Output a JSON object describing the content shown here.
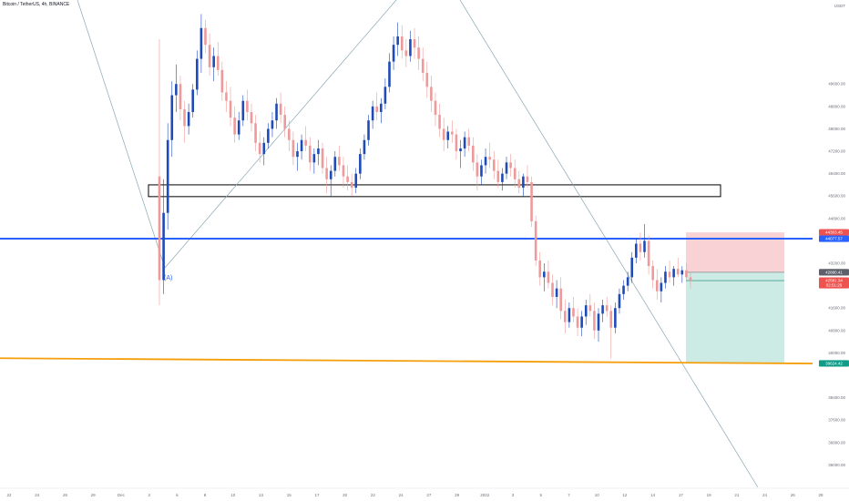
{
  "header": {
    "symbol": "Bitcoin / TetherUS, 4h, BINANCE"
  },
  "currency_label": "USDT",
  "colors": {
    "up": "#1e4bb8",
    "down": "#ef9a9a",
    "trend": "#88a8b4",
    "resistance": "#2962ff",
    "support": "#f59e0b",
    "stop": "#f8c7cc",
    "target": "#bfe6df"
  },
  "chart_data": {
    "type": "candlestick",
    "title": "Bitcoin / TetherUS, 4h, BINANCE",
    "ylim": [
      35200,
      52600
    ],
    "y_ticks": [
      {
        "value": 49600,
        "label": "49600.00"
      },
      {
        "value": 48800,
        "label": "48800.00"
      },
      {
        "value": 48000,
        "label": "48000.00"
      },
      {
        "value": 47200,
        "label": "47200.00"
      },
      {
        "value": 46400,
        "label": "46400.00"
      },
      {
        "value": 45600,
        "label": "45600.00"
      },
      {
        "value": 44800,
        "label": "44800.00"
      },
      {
        "value": 43200,
        "label": "43200.00"
      },
      {
        "value": 41600,
        "label": "41600.00"
      },
      {
        "value": 40800,
        "label": "40800.00"
      },
      {
        "value": 40000,
        "label": "40000.00"
      },
      {
        "value": 38400,
        "label": "38400.00"
      },
      {
        "value": 37600,
        "label": "37600.00"
      },
      {
        "value": 36800,
        "label": "36800.00"
      },
      {
        "value": 36000,
        "label": "36000.00"
      }
    ],
    "x_ticks": [
      "22",
      "24",
      "26",
      "29",
      "Dec",
      "3",
      "6",
      "8",
      "10",
      "13",
      "15",
      "17",
      "20",
      "22",
      "24",
      "27",
      "29",
      "2022",
      "3",
      "5",
      "7",
      "10",
      "12",
      "14",
      "17",
      "19",
      "21",
      "24",
      "26",
      "28"
    ],
    "price_badges": [
      {
        "label": "44303.45",
        "value": 44303.45,
        "color": "#ef5350"
      },
      {
        "label": "44077.57",
        "value": 44077.57,
        "color": "#2962ff"
      },
      {
        "label": "42880.41",
        "value": 42880.41,
        "color": "#5d606b"
      },
      {
        "label": "42581.34",
        "value": 42581.34,
        "color": "#ef5350"
      },
      {
        "label": "02:51:29",
        "value": 42420,
        "color": "#ef5350"
      },
      {
        "label": "39624.42",
        "value": 39624.42,
        "color": "#0f9d8a"
      }
    ],
    "horizontal_lines": [
      {
        "name": "resistance",
        "value": 44077.57
      },
      {
        "name": "support",
        "value_start": 39810,
        "value_end": 39620
      }
    ],
    "zone": {
      "top": 46000,
      "bottom": 45580
    },
    "position": {
      "stop": 44303.45,
      "entry": 42880.41,
      "target": 39624.42
    },
    "wave_label": "(A)",
    "candles": [
      [
        46300,
        51200,
        41700,
        42600
      ],
      [
        42600,
        46200,
        42100,
        45000
      ],
      [
        45000,
        48200,
        44400,
        47600
      ],
      [
        47600,
        49700,
        47000,
        49200
      ],
      [
        49200,
        50300,
        48600,
        49600
      ],
      [
        49600,
        49900,
        48300,
        48700
      ],
      [
        48700,
        49000,
        47500,
        48100
      ],
      [
        48100,
        48900,
        47800,
        48600
      ],
      [
        48600,
        49600,
        48400,
        49400
      ],
      [
        49400,
        50800,
        49200,
        50500
      ],
      [
        50500,
        52100,
        50000,
        51600
      ],
      [
        51600,
        51900,
        50700,
        51000
      ],
      [
        51000,
        51400,
        49900,
        50200
      ],
      [
        50200,
        50900,
        49700,
        50600
      ],
      [
        50600,
        51100,
        49900,
        50100
      ],
      [
        50100,
        50400,
        49000,
        49300
      ],
      [
        49300,
        49700,
        48600,
        49000
      ],
      [
        49000,
        49500,
        48100,
        48400
      ],
      [
        48400,
        48800,
        47500,
        47800
      ],
      [
        47800,
        48600,
        47600,
        48300
      ],
      [
        48300,
        49200,
        48100,
        49000
      ],
      [
        49000,
        49400,
        48300,
        48600
      ],
      [
        48600,
        48900,
        47900,
        48200
      ],
      [
        48200,
        48500,
        47200,
        47500
      ],
      [
        47500,
        47900,
        46800,
        47100
      ],
      [
        47100,
        47700,
        46700,
        47500
      ],
      [
        47500,
        48200,
        47300,
        48000
      ],
      [
        48000,
        48600,
        47700,
        48300
      ],
      [
        48300,
        49100,
        48000,
        48900
      ],
      [
        48900,
        49300,
        48200,
        48500
      ],
      [
        48500,
        48800,
        47700,
        48000
      ],
      [
        48000,
        48300,
        47200,
        47600
      ],
      [
        47600,
        47900,
        46700,
        47000
      ],
      [
        47000,
        47500,
        46500,
        47200
      ],
      [
        47200,
        47800,
        46900,
        47600
      ],
      [
        47600,
        48100,
        47200,
        47400
      ],
      [
        47400,
        47700,
        46500,
        46800
      ],
      [
        46800,
        47300,
        46400,
        47100
      ],
      [
        47100,
        47600,
        46700,
        47300
      ],
      [
        47300,
        47500,
        46400,
        46600
      ],
      [
        46600,
        47000,
        45700,
        46200
      ],
      [
        46200,
        46700,
        45600,
        46500
      ],
      [
        46500,
        47200,
        46300,
        47000
      ],
      [
        47000,
        47400,
        46500,
        46700
      ],
      [
        46700,
        47000,
        45900,
        46300
      ],
      [
        46300,
        46700,
        45800,
        46100
      ],
      [
        46100,
        46400,
        45600,
        45900
      ],
      [
        45900,
        46600,
        45700,
        46400
      ],
      [
        46400,
        47300,
        46200,
        47100
      ],
      [
        47100,
        47800,
        46900,
        47600
      ],
      [
        47600,
        48500,
        47400,
        48300
      ],
      [
        48300,
        49000,
        48000,
        48800
      ],
      [
        48800,
        49300,
        48300,
        48600
      ],
      [
        48600,
        49100,
        48200,
        48900
      ],
      [
        48900,
        49800,
        48700,
        49500
      ],
      [
        49500,
        50700,
        49300,
        50400
      ],
      [
        50400,
        51300,
        50100,
        51000
      ],
      [
        51000,
        51800,
        50600,
        51300
      ],
      [
        51300,
        51700,
        50500,
        50800
      ],
      [
        50800,
        51200,
        50200,
        50600
      ],
      [
        50600,
        51500,
        50400,
        51200
      ],
      [
        51200,
        51600,
        50500,
        50900
      ],
      [
        50900,
        51300,
        50100,
        50500
      ],
      [
        50500,
        50900,
        49700,
        50000
      ],
      [
        50000,
        50400,
        49100,
        49500
      ],
      [
        49500,
        49900,
        48600,
        49000
      ],
      [
        49000,
        49300,
        48100,
        48500
      ],
      [
        48500,
        48900,
        47700,
        48000
      ],
      [
        48000,
        48400,
        47200,
        47600
      ],
      [
        47600,
        48100,
        47300,
        47900
      ],
      [
        47900,
        48300,
        47500,
        47800
      ],
      [
        47800,
        48000,
        46900,
        47200
      ],
      [
        47200,
        47600,
        46600,
        47300
      ],
      [
        47300,
        47900,
        47000,
        47700
      ],
      [
        47700,
        48000,
        47200,
        47400
      ],
      [
        47400,
        47700,
        46500,
        46800
      ],
      [
        46800,
        47100,
        45800,
        46300
      ],
      [
        46300,
        46900,
        46000,
        46700
      ],
      [
        46700,
        47300,
        46400,
        47000
      ],
      [
        47000,
        47500,
        46600,
        46900
      ],
      [
        46900,
        47200,
        46200,
        46500
      ],
      [
        46500,
        46900,
        45900,
        46100
      ],
      [
        46100,
        46600,
        45800,
        46400
      ],
      [
        46400,
        47000,
        46200,
        46800
      ],
      [
        46800,
        47100,
        46300,
        46600
      ],
      [
        46600,
        46900,
        45900,
        46200
      ],
      [
        46200,
        46500,
        45700,
        45900
      ],
      [
        45900,
        46400,
        45600,
        46300
      ],
      [
        46300,
        46700,
        45900,
        46100
      ],
      [
        46100,
        46300,
        44500,
        44700
      ],
      [
        44700,
        44900,
        43100,
        43300
      ],
      [
        43300,
        43600,
        42400,
        42700
      ],
      [
        42700,
        43200,
        42200,
        42900
      ],
      [
        42900,
        43300,
        42300,
        42500
      ],
      [
        42500,
        42800,
        41700,
        42000
      ],
      [
        42000,
        42600,
        41600,
        42300
      ],
      [
        42300,
        42700,
        41200,
        41500
      ],
      [
        41500,
        41900,
        40700,
        41100
      ],
      [
        41100,
        41800,
        40900,
        41600
      ],
      [
        41600,
        42000,
        41100,
        41300
      ],
      [
        41300,
        41600,
        40600,
        40900
      ],
      [
        40900,
        41500,
        40600,
        41300
      ],
      [
        41300,
        41900,
        41000,
        41700
      ],
      [
        41700,
        42100,
        41300,
        41500
      ],
      [
        41500,
        41800,
        40500,
        40800
      ],
      [
        40800,
        41600,
        40400,
        41400
      ],
      [
        41400,
        41900,
        41100,
        41700
      ],
      [
        41700,
        42000,
        41300,
        41500
      ],
      [
        41500,
        41700,
        39800,
        40900
      ],
      [
        40900,
        41800,
        40700,
        41600
      ],
      [
        41600,
        42300,
        41400,
        42100
      ],
      [
        42100,
        42600,
        41900,
        42400
      ],
      [
        42400,
        42900,
        42200,
        42700
      ],
      [
        42700,
        43600,
        42500,
        43400
      ],
      [
        43400,
        44100,
        43200,
        43900
      ],
      [
        43900,
        44300,
        43300,
        43600
      ],
      [
        43600,
        44600,
        43400,
        44000
      ],
      [
        44000,
        44200,
        42800,
        43100
      ],
      [
        43100,
        43300,
        42300,
        42600
      ],
      [
        42600,
        43000,
        41900,
        42200
      ],
      [
        42200,
        42700,
        41800,
        42500
      ],
      [
        42500,
        43100,
        42300,
        42900
      ],
      [
        42900,
        43300,
        42500,
        42700
      ],
      [
        42700,
        43100,
        42400,
        43000
      ],
      [
        43000,
        43400,
        42700,
        42800
      ],
      [
        42800,
        43100,
        42500,
        42950
      ],
      [
        42950,
        43200,
        42600,
        42700
      ],
      [
        42700,
        42900,
        42300,
        42580
      ]
    ]
  }
}
